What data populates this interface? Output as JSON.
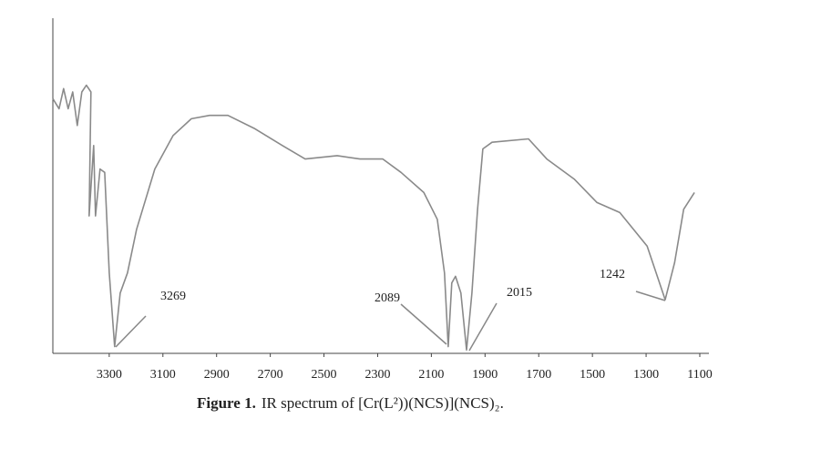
{
  "chart_data": {
    "type": "line",
    "x": [
      3510,
      3487,
      3470,
      3453,
      3436,
      3419,
      3402,
      3385,
      3368,
      3375,
      3358,
      3351,
      3334,
      3317,
      3300,
      3280,
      3259,
      3232,
      3198,
      3130,
      3062,
      2994,
      2926,
      2858,
      2757,
      2655,
      2570,
      2451,
      2366,
      2281,
      2213,
      2128,
      2078,
      2051,
      2037,
      2024,
      2010,
      1990,
      1969,
      1949,
      1928,
      1908,
      1874,
      1738,
      1670,
      1568,
      1483,
      1398,
      1296,
      1229,
      1194,
      1160,
      1120
    ],
    "values": [
      76,
      73,
      79,
      73,
      78,
      68,
      78,
      80,
      78,
      41,
      62,
      41,
      55,
      54,
      24,
      2,
      18,
      24,
      37,
      55,
      65,
      70,
      71,
      71,
      67,
      62,
      58,
      59,
      58,
      58,
      54,
      48,
      40,
      24,
      2,
      21,
      23,
      18,
      1,
      18,
      43,
      61,
      63,
      64,
      58,
      52,
      45,
      42,
      32,
      16,
      27,
      43,
      48
    ],
    "color": "#8a8a8a",
    "xlim": [
      3510,
      1066
    ],
    "xticks": [
      3300,
      3100,
      2900,
      2700,
      2500,
      2300,
      2100,
      1900,
      1700,
      1500,
      1300,
      1100
    ],
    "ylim": [
      0,
      100
    ],
    "annotations": [
      "3269",
      "2089",
      "2015",
      "1242"
    ],
    "caption": {
      "label": "Figure 1.",
      "text": "IR spectrum of [Cr(L²))(NCS)](NCS)₂."
    }
  }
}
